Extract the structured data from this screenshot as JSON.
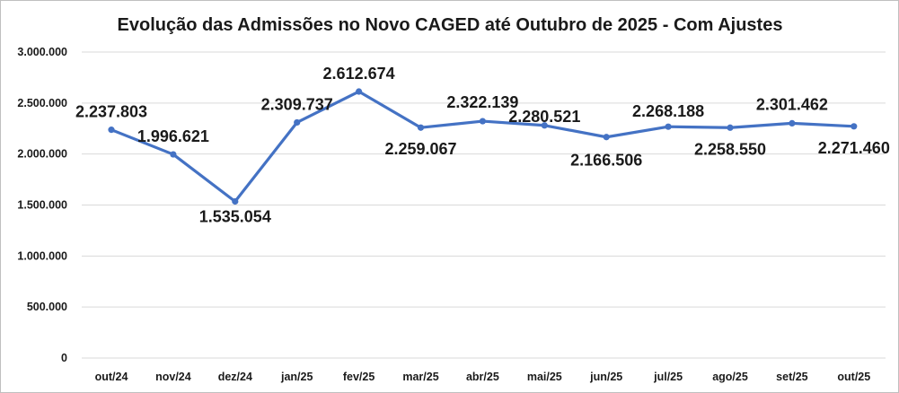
{
  "chart_data": {
    "type": "line",
    "title": "Evolução das Admissões no Novo CAGED até Outubro de 2025 - Com Ajustes",
    "categories": [
      "out/24",
      "nov/24",
      "dez/24",
      "jan/25",
      "fev/25",
      "mar/25",
      "abr/25",
      "mai/25",
      "jun/25",
      "jul/25",
      "ago/25",
      "set/25",
      "out/25"
    ],
    "values": [
      2237803,
      1996621,
      1535054,
      2309737,
      2612674,
      2259067,
      2322139,
      2280521,
      2166506,
      2268188,
      2258550,
      2301462,
      2271460
    ],
    "data_labels": [
      "2.237.803",
      "1.996.621",
      "1.535.054",
      "2.309.737",
      "2.612.674",
      "2.259.067",
      "2.322.139",
      "2.280.521",
      "2.166.506",
      "2.268.188",
      "2.258.550",
      "2.301.462",
      "2.271.460"
    ],
    "y_ticks": [
      "0",
      "500.000",
      "1.000.000",
      "1.500.000",
      "2.000.000",
      "2.500.000",
      "3.000.000"
    ],
    "ylim": [
      0,
      3000000
    ],
    "grid": true,
    "legend": "none",
    "line_color": "#4472c4",
    "xlabel": "",
    "ylabel": ""
  }
}
